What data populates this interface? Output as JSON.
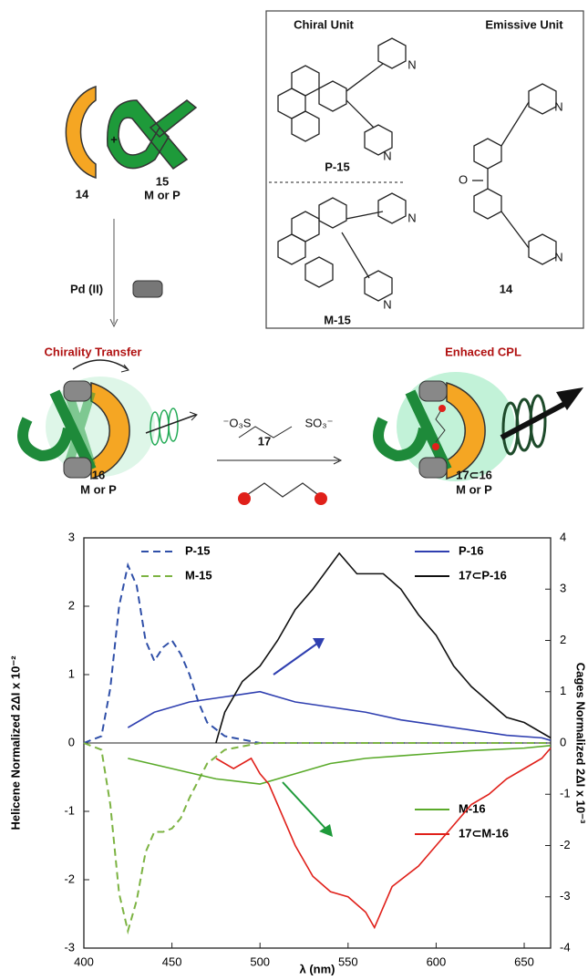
{
  "scheme": {
    "texts": [
      "Chiral Unit",
      "Emissive Unit",
      "P-15",
      "M-15",
      "14",
      "14",
      "15",
      "M or P",
      "+",
      "Pd (II)",
      "Chirality Transfer",
      "Enhaced CPL",
      "16",
      "M or P",
      "17",
      "17⊂16",
      "M or P",
      "⁻O₃S",
      "SO₃⁻",
      "O",
      "N",
      "N",
      "N",
      "N",
      "N",
      "N"
    ]
  },
  "chart_data": {
    "type": "line",
    "x_label": "λ (nm)",
    "y_label": "Helicene Normalized 2ΔI x 10⁻²",
    "y2_label": "Cages Normalized 2ΔI x 10⁻³",
    "xlim": [
      400,
      665
    ],
    "xticks": [
      400,
      450,
      500,
      550,
      600,
      650
    ],
    "ylim": [
      -3,
      3
    ],
    "yticks": [
      -3,
      -2,
      -1,
      0,
      1,
      2,
      3
    ],
    "y2lim": [
      -4,
      4
    ],
    "y2ticks": [
      -4,
      -3,
      -2,
      -1,
      0,
      1,
      2,
      3,
      4
    ],
    "series": [
      {
        "name": "P-15",
        "color": "#2f4fa8",
        "style": "dashed",
        "x": [
          400,
          410,
          415,
          420,
          425,
          430,
          435,
          440,
          445,
          450,
          455,
          460,
          465,
          470,
          480,
          500,
          560,
          665
        ],
        "values": [
          0,
          0.1,
          0.8,
          2.0,
          2.6,
          2.3,
          1.5,
          1.2,
          1.4,
          1.5,
          1.3,
          1.0,
          0.6,
          0.3,
          0.1,
          0,
          0,
          0
        ]
      },
      {
        "name": "M-15",
        "color": "#7cb342",
        "style": "dashed",
        "x": [
          400,
          410,
          415,
          420,
          425,
          430,
          435,
          440,
          445,
          450,
          455,
          460,
          470,
          480,
          500,
          665
        ],
        "values": [
          0,
          -0.1,
          -0.9,
          -2.2,
          -2.75,
          -2.3,
          -1.6,
          -1.3,
          -1.3,
          -1.25,
          -1.1,
          -0.8,
          -0.3,
          -0.1,
          0,
          0
        ]
      },
      {
        "name": "P-16",
        "color": "#2f3fb0",
        "style": "solid",
        "axis": "y2",
        "x": [
          425,
          440,
          460,
          480,
          500,
          520,
          540,
          560,
          580,
          600,
          620,
          640,
          660,
          665
        ],
        "values": [
          0.3,
          0.6,
          0.8,
          0.9,
          1.0,
          0.8,
          0.7,
          0.6,
          0.45,
          0.35,
          0.25,
          0.15,
          0.1,
          0.05
        ]
      },
      {
        "name": "17⊂P-16",
        "color": "#111111",
        "style": "solid",
        "axis": "y2",
        "x": [
          475,
          480,
          490,
          500,
          510,
          520,
          530,
          545,
          555,
          570,
          580,
          590,
          600,
          610,
          620,
          630,
          640,
          650,
          660,
          665
        ],
        "values": [
          0,
          0.6,
          1.2,
          1.5,
          2.0,
          2.6,
          3.0,
          3.7,
          3.3,
          3.3,
          3.0,
          2.5,
          2.1,
          1.5,
          1.1,
          0.8,
          0.5,
          0.4,
          0.2,
          0.1
        ]
      },
      {
        "name": "M-16",
        "color": "#5aaa2a",
        "style": "solid",
        "axis": "y2",
        "x": [
          425,
          450,
          475,
          500,
          520,
          540,
          560,
          580,
          600,
          620,
          650,
          665
        ],
        "values": [
          -0.3,
          -0.5,
          -0.7,
          -0.8,
          -0.6,
          -0.4,
          -0.3,
          -0.25,
          -0.2,
          -0.15,
          -0.1,
          -0.05
        ]
      },
      {
        "name": "17⊂M-16",
        "color": "#e0201a",
        "style": "solid",
        "axis": "y2",
        "x": [
          475,
          485,
          495,
          500,
          505,
          510,
          520,
          530,
          540,
          550,
          560,
          565,
          575,
          590,
          600,
          610,
          620,
          630,
          640,
          650,
          660,
          665
        ],
        "values": [
          -0.3,
          -0.5,
          -0.3,
          -0.6,
          -0.8,
          -1.2,
          -2.0,
          -2.6,
          -2.9,
          -3.0,
          -3.3,
          -3.6,
          -2.8,
          -2.4,
          -2.0,
          -1.6,
          -1.2,
          -1.0,
          -0.7,
          -0.5,
          -0.3,
          -0.1
        ]
      }
    ]
  }
}
